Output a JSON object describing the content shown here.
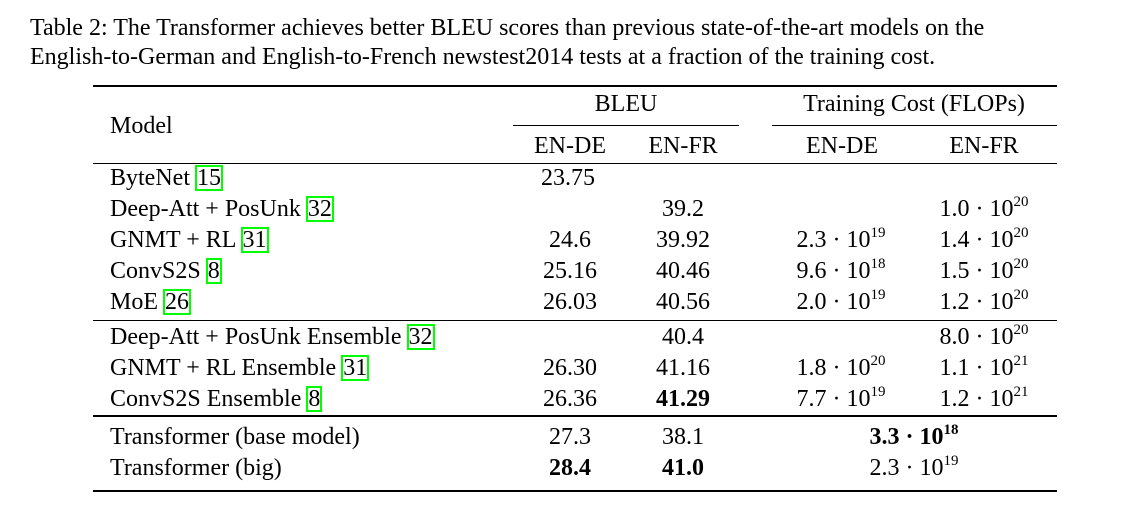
{
  "caption": {
    "line1": "Table 2: The Transformer achieves better BLEU scores than previous state-of-the-art models on the",
    "line2": "English-to-German and English-to-French newstest2014 tests at a fraction of the training cost."
  },
  "header": {
    "model": "Model",
    "bleu": "BLEU",
    "cost": "Training Cost (FLOPs)",
    "bleu_en_de": "EN-DE",
    "bleu_en_fr": "EN-FR",
    "cost_en_de": "EN-DE",
    "cost_en_fr": "EN-FR"
  },
  "rows": [
    {
      "name": "ByteNet ",
      "ref": "15",
      "bleu_de": "23.75",
      "bleu_fr": "",
      "cost_de_m": "",
      "cost_de_e": "",
      "cost_fr_m": "",
      "cost_fr_e": ""
    },
    {
      "name": "Deep-Att + PosUnk ",
      "ref": "32",
      "bleu_de": "",
      "bleu_fr": "39.2",
      "cost_de_m": "",
      "cost_de_e": "",
      "cost_fr_m": "1.0 · 10",
      "cost_fr_e": "20"
    },
    {
      "name": "GNMT + RL ",
      "ref": "31",
      "bleu_de": "24.6",
      "bleu_fr": "39.92",
      "cost_de_m": "2.3 · 10",
      "cost_de_e": "19",
      "cost_fr_m": "1.4 · 10",
      "cost_fr_e": "20"
    },
    {
      "name": "ConvS2S ",
      "ref": "8",
      "bleu_de": "25.16",
      "bleu_fr": "40.46",
      "cost_de_m": "9.6 · 10",
      "cost_de_e": "18",
      "cost_fr_m": "1.5 · 10",
      "cost_fr_e": "20"
    },
    {
      "name": "MoE ",
      "ref": "26",
      "bleu_de": "26.03",
      "bleu_fr": "40.56",
      "cost_de_m": "2.0 · 10",
      "cost_de_e": "19",
      "cost_fr_m": "1.2 · 10",
      "cost_fr_e": "20"
    },
    {
      "name": "Deep-Att + PosUnk Ensemble ",
      "ref": "32",
      "bleu_de": "",
      "bleu_fr": "40.4",
      "cost_de_m": "",
      "cost_de_e": "",
      "cost_fr_m": "8.0 · 10",
      "cost_fr_e": "20"
    },
    {
      "name": "GNMT + RL Ensemble ",
      "ref": "31",
      "bleu_de": "26.30",
      "bleu_fr": "41.16",
      "cost_de_m": "1.8 · 10",
      "cost_de_e": "20",
      "cost_fr_m": "1.1 · 10",
      "cost_fr_e": "21"
    },
    {
      "name": "ConvS2S Ensemble ",
      "ref": "8",
      "bleu_de": "26.36",
      "bleu_fr": "41.29",
      "cost_de_m": "7.7 · 10",
      "cost_de_e": "19",
      "cost_fr_m": "1.2 · 10",
      "cost_fr_e": "21"
    }
  ],
  "transformer": [
    {
      "name": "Transformer (base model)",
      "bleu_de": "27.3",
      "bleu_fr": "38.1",
      "cost_m": "3.3 · 10",
      "cost_e": "18"
    },
    {
      "name": "Transformer (big)",
      "bleu_de": "28.4",
      "bleu_fr": "41.0",
      "cost_m": "2.3 · 10",
      "cost_e": "19"
    }
  ]
}
